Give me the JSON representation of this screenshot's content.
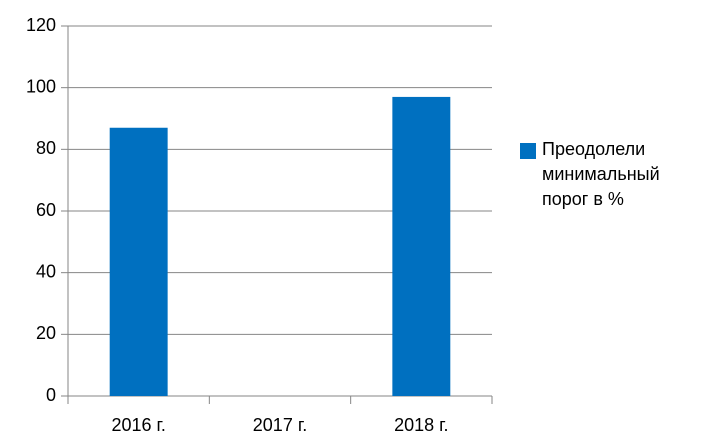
{
  "chart_data": {
    "type": "bar",
    "categories": [
      "2016 г.",
      "2017 г.",
      "2018 г."
    ],
    "series": [
      {
        "name": "Преодолели минимальный порог в %",
        "color": "#0070c0",
        "values": [
          87,
          null,
          97
        ]
      }
    ],
    "ylim": [
      0,
      120
    ],
    "yticks": [
      0,
      20,
      40,
      60,
      80,
      100,
      120
    ],
    "grid": true,
    "legend": "right"
  }
}
